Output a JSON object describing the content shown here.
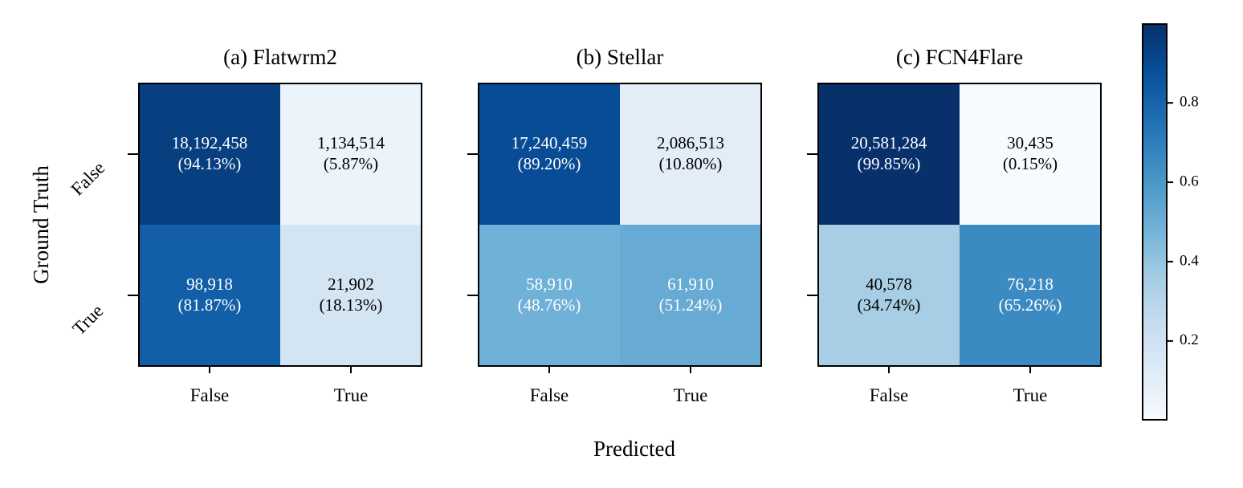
{
  "figure": {
    "ylabel": "Ground Truth",
    "xlabel": "Predicted"
  },
  "chart_data": [
    {
      "type": "heatmap",
      "title": "(a) Flatwrm2",
      "x_categories": [
        "False",
        "True"
      ],
      "y_categories": [
        "False",
        "True"
      ],
      "xlabel": "Predicted",
      "ylabel": "Ground Truth",
      "counts": [
        [
          "18,192,458",
          "1,134,514"
        ],
        [
          "98,918",
          "21,902"
        ]
      ],
      "percents": [
        [
          "(94.13%)",
          "(5.87%)"
        ],
        [
          "(81.87%)",
          "(18.13%)"
        ]
      ],
      "values": [
        [
          0.9413,
          0.0587
        ],
        [
          0.8187,
          0.1813
        ]
      ]
    },
    {
      "type": "heatmap",
      "title": "(b) Stellar",
      "x_categories": [
        "False",
        "True"
      ],
      "y_categories": [
        "False",
        "True"
      ],
      "xlabel": "Predicted",
      "ylabel": "Ground Truth",
      "counts": [
        [
          "17,240,459",
          "2,086,513"
        ],
        [
          "58,910",
          "61,910"
        ]
      ],
      "percents": [
        [
          "(89.20%)",
          "(10.80%)"
        ],
        [
          "(48.76%)",
          "(51.24%)"
        ]
      ],
      "values": [
        [
          0.892,
          0.108
        ],
        [
          0.4876,
          0.5124
        ]
      ]
    },
    {
      "type": "heatmap",
      "title": "(c) FCN4Flare",
      "x_categories": [
        "False",
        "True"
      ],
      "y_categories": [
        "False",
        "True"
      ],
      "xlabel": "Predicted",
      "ylabel": "Ground Truth",
      "counts": [
        [
          "20,581,284",
          "30,435"
        ],
        [
          "40,578",
          "76,218"
        ]
      ],
      "percents": [
        [
          "(99.85%)",
          "(0.15%)"
        ],
        [
          "(34.74%)",
          "(65.26%)"
        ]
      ],
      "values": [
        [
          0.9985,
          0.0015
        ],
        [
          0.3474,
          0.6526
        ]
      ]
    }
  ],
  "colorbar": {
    "colormap": "Blues",
    "range": [
      0.0015,
      0.9985
    ],
    "ticks": [
      "0.2",
      "0.4",
      "0.6",
      "0.8"
    ],
    "tick_values": [
      0.2,
      0.4,
      0.6,
      0.8
    ],
    "colors": [
      "#f7fbff",
      "#deebf7",
      "#c6dbef",
      "#9ecae1",
      "#6baed6",
      "#4292c6",
      "#2171b5",
      "#08519c",
      "#08306b"
    ]
  }
}
